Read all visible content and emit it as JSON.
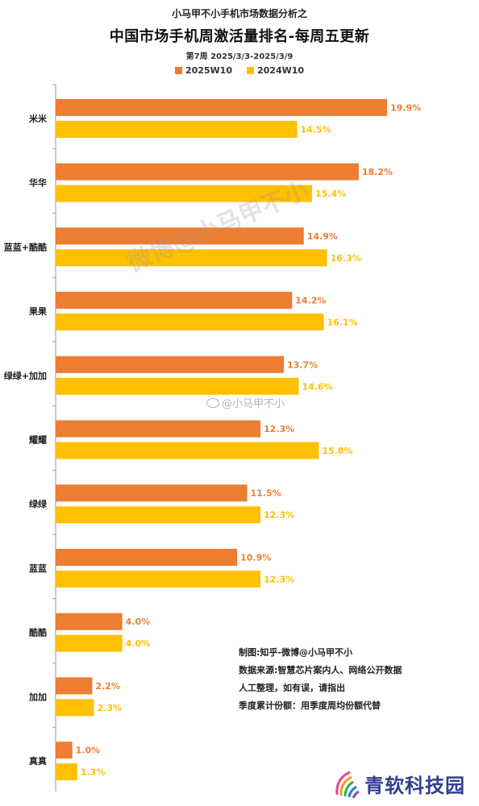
{
  "header": {
    "kicker": "小马甲不小手机市场数据分析之",
    "title": "中国市场手机周激活量排名-每周五更新",
    "subtitle": "第7周 2025/3/3-2025/3/9"
  },
  "colors": {
    "series_2025": "#ED7D31",
    "series_2024": "#FFC000",
    "axis": "#999999"
  },
  "chart_data": {
    "type": "bar",
    "orientation": "horizontal",
    "categories": [
      "米米",
      "华华",
      "蓝蓝+酷酷",
      "果果",
      "绿绿+加加",
      "耀耀",
      "绿绿",
      "蓝蓝",
      "酷酷",
      "加加",
      "真真"
    ],
    "series": [
      {
        "name": "2025W10",
        "values": [
          19.9,
          18.2,
          14.9,
          14.2,
          13.7,
          12.3,
          11.5,
          10.9,
          4.0,
          2.2,
          1.0
        ],
        "labels": [
          "19.9%",
          "18.2%",
          "14.9%",
          "14.2%",
          "13.7%",
          "12.3%",
          "11.5%",
          "10.9%",
          "4.0%",
          "2.2%",
          "1.0%"
        ]
      },
      {
        "name": "2024W10",
        "values": [
          14.5,
          15.4,
          16.3,
          16.1,
          14.6,
          15.8,
          12.3,
          12.3,
          4.0,
          2.3,
          1.3
        ],
        "labels": [
          "14.5%",
          "15.4%",
          "16.3%",
          "16.1%",
          "14.6%",
          "15.8%",
          "12.3%",
          "12.3%",
          "4.0%",
          "2.3%",
          "1.3%"
        ]
      }
    ],
    "xlim": [
      0,
      21
    ],
    "grid": false,
    "legend": "top-center"
  },
  "notes": [
    "制图:知乎-微博@小马甲不小",
    "数据来源:智慧芯片案内人、网络公开数据",
    "人工整理，如有误，请指出",
    "季度累计份额：用季度周均份额代替"
  ],
  "watermarks": {
    "diagonal": "微博@小马甲不小",
    "center": "@小马甲不小"
  },
  "brand": {
    "name": "青软科技园"
  }
}
